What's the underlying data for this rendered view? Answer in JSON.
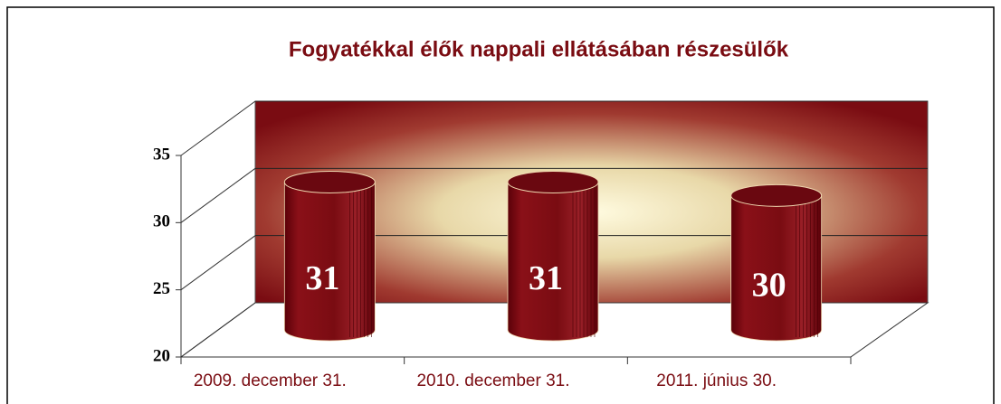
{
  "chart_data": {
    "type": "bar",
    "title": "Fogyatékkal élők nappali ellátásában részesülők",
    "categories": [
      "2009. december 31.",
      "2010. december 31.",
      "2011. június 30."
    ],
    "values": [
      31,
      31,
      30
    ],
    "color": "#7a0c12",
    "ylim": [
      20,
      35
    ],
    "yticks": [
      20,
      25,
      30,
      35
    ],
    "grid": true
  }
}
